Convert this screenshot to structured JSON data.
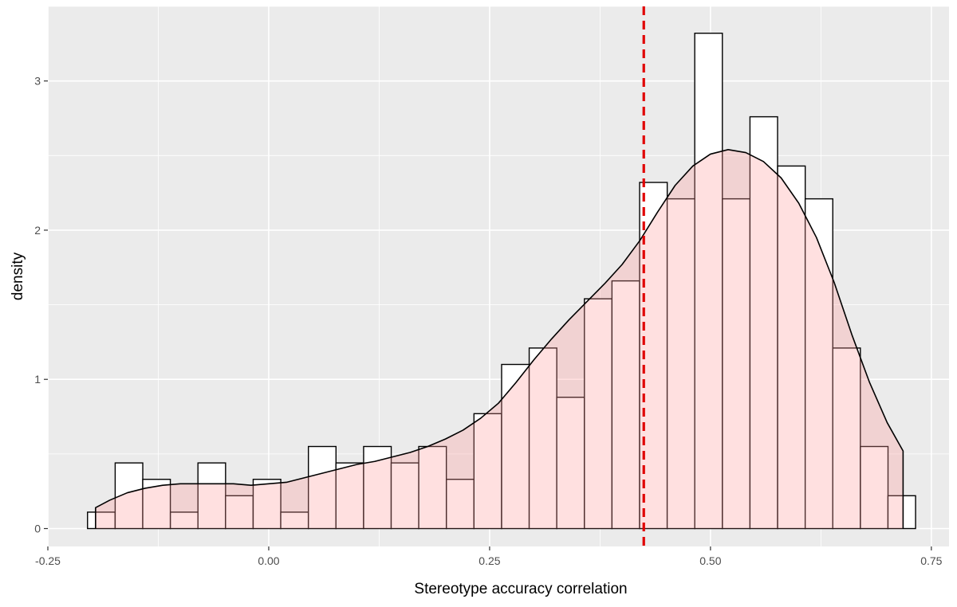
{
  "chart_data": {
    "type": "bar",
    "subtype": "histogram-with-density",
    "title": "",
    "xlabel": "Stereotype accuracy correlation",
    "ylabel": "density",
    "xlim": [
      -0.25,
      0.77
    ],
    "ylim": [
      -0.12,
      3.5
    ],
    "x_ticks": [
      -0.25,
      0.0,
      0.25,
      0.5,
      0.75
    ],
    "x_tick_labels": [
      "-0.25",
      "0.00",
      "0.25",
      "0.50",
      "0.75"
    ],
    "y_ticks": [
      0,
      1,
      2,
      3
    ],
    "y_tick_labels": [
      "0",
      "1",
      "2",
      "3"
    ],
    "grid": true,
    "background_color": "#ebebeb",
    "grid_color": "#ffffff",
    "series": [
      {
        "kind": "histogram",
        "fill": "#ffffff",
        "stroke": "#000000",
        "bin_width": 0.03124,
        "bins": [
          {
            "x0": -0.2051,
            "density": 0.11
          },
          {
            "x0": -0.1738,
            "density": 0.44
          },
          {
            "x0": -0.1426,
            "density": 0.33
          },
          {
            "x0": -0.1113,
            "density": 0.11
          },
          {
            "x0": -0.0801,
            "density": 0.44
          },
          {
            "x0": -0.0489,
            "density": 0.22
          },
          {
            "x0": -0.0176,
            "density": 0.33
          },
          {
            "x0": 0.0136,
            "density": 0.11
          },
          {
            "x0": 0.0449,
            "density": 0.55
          },
          {
            "x0": 0.0761,
            "density": 0.44
          },
          {
            "x0": 0.1074,
            "density": 0.55
          },
          {
            "x0": 0.1386,
            "density": 0.44
          },
          {
            "x0": 0.1698,
            "density": 0.55
          },
          {
            "x0": 0.2011,
            "density": 0.33
          },
          {
            "x0": 0.2323,
            "density": 0.77
          },
          {
            "x0": 0.2636,
            "density": 1.1
          },
          {
            "x0": 0.2948,
            "density": 1.21
          },
          {
            "x0": 0.326,
            "density": 0.88
          },
          {
            "x0": 0.3573,
            "density": 1.54
          },
          {
            "x0": 0.3885,
            "density": 1.66
          },
          {
            "x0": 0.4198,
            "density": 2.32
          },
          {
            "x0": 0.451,
            "density": 2.21
          },
          {
            "x0": 0.4822,
            "density": 3.32
          },
          {
            "x0": 0.5135,
            "density": 2.21
          },
          {
            "x0": 0.5447,
            "density": 2.76
          },
          {
            "x0": 0.576,
            "density": 2.43
          },
          {
            "x0": 0.6072,
            "density": 2.21
          },
          {
            "x0": 0.6384,
            "density": 1.21
          },
          {
            "x0": 0.6697,
            "density": 0.55
          },
          {
            "x0": 0.7009,
            "density": 0.22
          }
        ]
      },
      {
        "kind": "density",
        "fill": "#ff9999",
        "fill_opacity": 0.3,
        "stroke": "#000000",
        "points": [
          [
            -0.196,
            0.14
          ],
          [
            -0.18,
            0.19
          ],
          [
            -0.16,
            0.24
          ],
          [
            -0.14,
            0.27
          ],
          [
            -0.12,
            0.29
          ],
          [
            -0.1,
            0.3
          ],
          [
            -0.08,
            0.3
          ],
          [
            -0.06,
            0.3
          ],
          [
            -0.04,
            0.3
          ],
          [
            -0.02,
            0.29
          ],
          [
            0.0,
            0.3
          ],
          [
            0.02,
            0.31
          ],
          [
            0.04,
            0.34
          ],
          [
            0.06,
            0.37
          ],
          [
            0.08,
            0.4
          ],
          [
            0.1,
            0.43
          ],
          [
            0.12,
            0.45
          ],
          [
            0.14,
            0.48
          ],
          [
            0.16,
            0.51
          ],
          [
            0.18,
            0.55
          ],
          [
            0.2,
            0.6
          ],
          [
            0.22,
            0.66
          ],
          [
            0.24,
            0.74
          ],
          [
            0.26,
            0.84
          ],
          [
            0.28,
            0.98
          ],
          [
            0.3,
            1.13
          ],
          [
            0.32,
            1.27
          ],
          [
            0.34,
            1.4
          ],
          [
            0.36,
            1.52
          ],
          [
            0.38,
            1.64
          ],
          [
            0.4,
            1.77
          ],
          [
            0.42,
            1.93
          ],
          [
            0.44,
            2.12
          ],
          [
            0.46,
            2.3
          ],
          [
            0.48,
            2.43
          ],
          [
            0.5,
            2.51
          ],
          [
            0.52,
            2.54
          ],
          [
            0.54,
            2.52
          ],
          [
            0.56,
            2.46
          ],
          [
            0.58,
            2.35
          ],
          [
            0.6,
            2.18
          ],
          [
            0.62,
            1.95
          ],
          [
            0.64,
            1.65
          ],
          [
            0.66,
            1.3
          ],
          [
            0.68,
            0.98
          ],
          [
            0.7,
            0.71
          ],
          [
            0.718,
            0.52
          ]
        ]
      }
    ],
    "reference_line": {
      "x": 0.4245,
      "color": "#e00000",
      "style": "dashed"
    }
  }
}
